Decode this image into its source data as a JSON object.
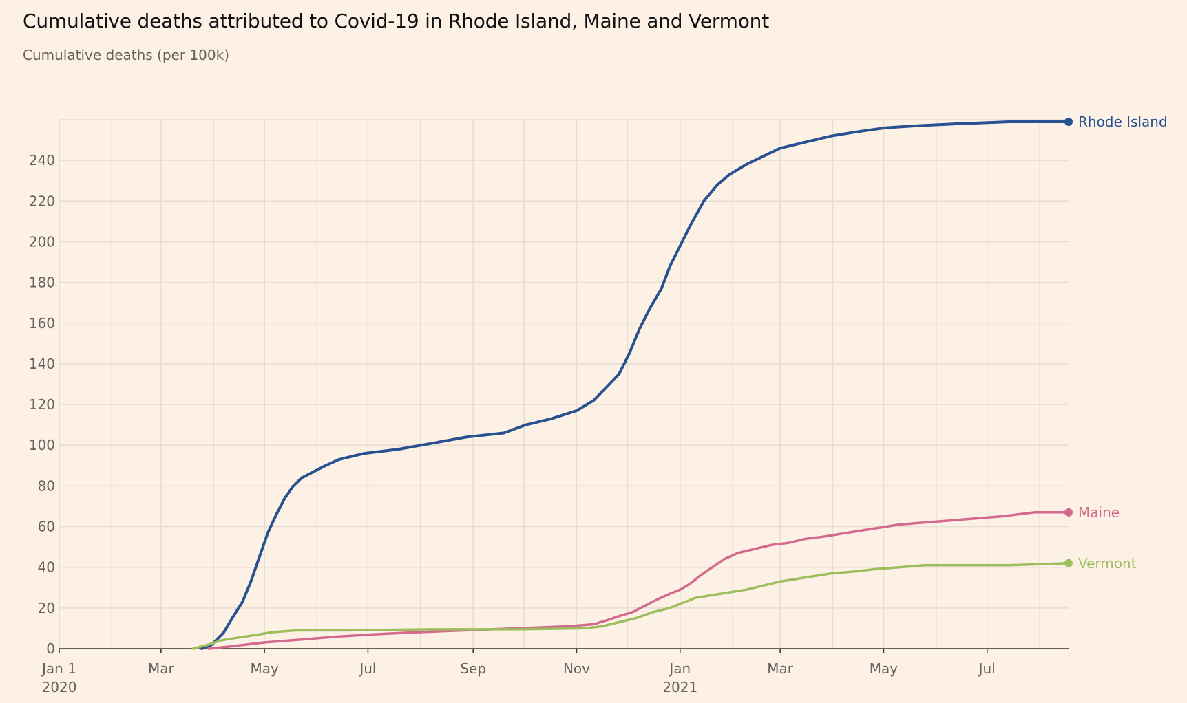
{
  "chart_data": {
    "type": "line",
    "title": "Cumulative deaths attributed to Covid-19 in Rhode Island, Maine and Vermont",
    "subtitle": "Cumulative deaths (per 100k)",
    "xlabel": "",
    "ylabel": "Cumulative deaths (per 100k)",
    "x_unit": "days since Jan 1 2020",
    "xlim": [
      0,
      595
    ],
    "ylim": [
      0,
      260
    ],
    "grid": true,
    "legend": "right-end labels",
    "y_ticks": [
      0,
      20,
      40,
      60,
      80,
      100,
      120,
      140,
      160,
      180,
      200,
      220,
      240
    ],
    "x_ticks": [
      {
        "day": 0,
        "label": "Jan 1",
        "year": "2020"
      },
      {
        "day": 60,
        "label": "Mar",
        "year": ""
      },
      {
        "day": 121,
        "label": "May",
        "year": ""
      },
      {
        "day": 182,
        "label": "Jul",
        "year": ""
      },
      {
        "day": 244,
        "label": "Sep",
        "year": ""
      },
      {
        "day": 305,
        "label": "Nov",
        "year": ""
      },
      {
        "day": 366,
        "label": "Jan",
        "year": "2021"
      },
      {
        "day": 425,
        "label": "Mar",
        "year": ""
      },
      {
        "day": 486,
        "label": "May",
        "year": ""
      },
      {
        "day": 547,
        "label": "Jul",
        "year": ""
      }
    ],
    "series": [
      {
        "name": "Rhode Island",
        "color": "#27518f",
        "points": [
          [
            84,
            0
          ],
          [
            90,
            2
          ],
          [
            97,
            8
          ],
          [
            102,
            15
          ],
          [
            108,
            23
          ],
          [
            113,
            33
          ],
          [
            118,
            45
          ],
          [
            123,
            57
          ],
          [
            128,
            66
          ],
          [
            133,
            74
          ],
          [
            138,
            80
          ],
          [
            143,
            84
          ],
          [
            150,
            87
          ],
          [
            157,
            90
          ],
          [
            165,
            93
          ],
          [
            180,
            96
          ],
          [
            200,
            98
          ],
          [
            220,
            101
          ],
          [
            240,
            104
          ],
          [
            262,
            106
          ],
          [
            275,
            110
          ],
          [
            290,
            113
          ],
          [
            305,
            117
          ],
          [
            315,
            122
          ],
          [
            322,
            128
          ],
          [
            330,
            135
          ],
          [
            336,
            145
          ],
          [
            342,
            157
          ],
          [
            348,
            167
          ],
          [
            355,
            177
          ],
          [
            360,
            188
          ],
          [
            366,
            198
          ],
          [
            372,
            208
          ],
          [
            380,
            220
          ],
          [
            388,
            228
          ],
          [
            395,
            233
          ],
          [
            405,
            238
          ],
          [
            415,
            242
          ],
          [
            425,
            246
          ],
          [
            440,
            249
          ],
          [
            455,
            252
          ],
          [
            470,
            254
          ],
          [
            487,
            256
          ],
          [
            505,
            257
          ],
          [
            530,
            258
          ],
          [
            560,
            259
          ],
          [
            595,
            259
          ]
        ]
      },
      {
        "name": "Maine",
        "color": "#d3698c",
        "points": [
          [
            88,
            0
          ],
          [
            100,
            1
          ],
          [
            110,
            2
          ],
          [
            120,
            3
          ],
          [
            135,
            4
          ],
          [
            150,
            5
          ],
          [
            165,
            6
          ],
          [
            185,
            7
          ],
          [
            210,
            8
          ],
          [
            240,
            9
          ],
          [
            270,
            10
          ],
          [
            300,
            11
          ],
          [
            315,
            12
          ],
          [
            323,
            14
          ],
          [
            330,
            16
          ],
          [
            338,
            18
          ],
          [
            345,
            21
          ],
          [
            352,
            24
          ],
          [
            360,
            27
          ],
          [
            366,
            29
          ],
          [
            372,
            32
          ],
          [
            378,
            36
          ],
          [
            385,
            40
          ],
          [
            392,
            44
          ],
          [
            400,
            47
          ],
          [
            410,
            49
          ],
          [
            420,
            51
          ],
          [
            430,
            52
          ],
          [
            440,
            54
          ],
          [
            450,
            55
          ],
          [
            465,
            57
          ],
          [
            480,
            59
          ],
          [
            495,
            61
          ],
          [
            510,
            62
          ],
          [
            525,
            63
          ],
          [
            540,
            64
          ],
          [
            555,
            65
          ],
          [
            575,
            67
          ],
          [
            595,
            67
          ]
        ]
      },
      {
        "name": "Vermont",
        "color": "#9dbe5e",
        "points": [
          [
            79,
            0
          ],
          [
            88,
            2
          ],
          [
            95,
            4
          ],
          [
            102,
            5
          ],
          [
            110,
            6
          ],
          [
            118,
            7
          ],
          [
            125,
            8
          ],
          [
            140,
            9
          ],
          [
            170,
            9
          ],
          [
            220,
            9.5
          ],
          [
            270,
            9.5
          ],
          [
            310,
            10
          ],
          [
            320,
            11
          ],
          [
            330,
            13
          ],
          [
            340,
            15
          ],
          [
            350,
            18
          ],
          [
            360,
            20
          ],
          [
            366,
            22
          ],
          [
            375,
            25
          ],
          [
            390,
            27
          ],
          [
            405,
            29
          ],
          [
            415,
            31
          ],
          [
            425,
            33
          ],
          [
            440,
            35
          ],
          [
            455,
            37
          ],
          [
            470,
            38
          ],
          [
            480,
            39
          ],
          [
            495,
            40
          ],
          [
            510,
            41
          ],
          [
            530,
            41
          ],
          [
            560,
            41
          ],
          [
            595,
            42
          ]
        ]
      }
    ]
  }
}
